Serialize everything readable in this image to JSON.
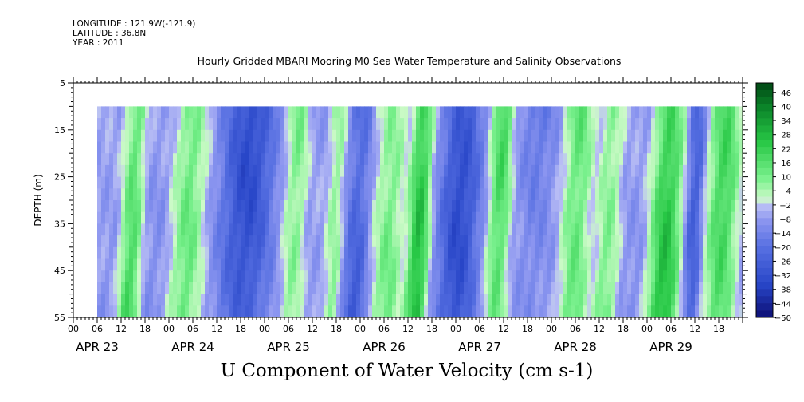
{
  "meta": {
    "longitude": "LONGITUDE : 121.9W(-121.9)",
    "latitude": "LATITUDE : 36.8N",
    "year": "YEAR : 2011"
  },
  "title": "Hourly Gridded MBARI Mooring M0 Sea Water Temperature and Salinity Observations",
  "variable_title": "U Component of Water Velocity (cm s-1)",
  "chart_data": {
    "type": "heatmap",
    "ylabel": "DEPTH (m)",
    "xlabel": "",
    "ylim": [
      5,
      55
    ],
    "y_inverted": true,
    "y_ticks": [
      "5",
      "15",
      "25",
      "35",
      "45",
      "55"
    ],
    "xlim_hours": [
      0,
      168
    ],
    "x_hour_ticks": [
      "00",
      "06",
      "12",
      "18"
    ],
    "day_labels": [
      "APR 23",
      "APR 24",
      "APR 25",
      "APR 26",
      "APR 27",
      "APR 28",
      "APR 29"
    ],
    "data_start": "APR 23 06:00",
    "data_depth_range": [
      10,
      55
    ],
    "colorbar": {
      "labels": [
        "46",
        "40",
        "34",
        "28",
        "22",
        "16",
        "10",
        "4",
        "-2",
        "-8",
        "-14",
        "-20",
        "-26",
        "-32",
        "-38",
        "-44",
        "-50"
      ],
      "min": -50,
      "max": 50,
      "step": 3
    },
    "bands": [
      {
        "start": "APR 23 06",
        "end": "APR 23 12",
        "sign": "negative"
      },
      {
        "start": "APR 23 12",
        "end": "APR 23 18",
        "sign": "positive",
        "peak": 16
      },
      {
        "start": "APR 23 18",
        "end": "APR 24 00",
        "sign": "negative"
      },
      {
        "start": "APR 24 00",
        "end": "APR 24 10",
        "sign": "positive",
        "peak": 10
      },
      {
        "start": "APR 24 10",
        "end": "APR 25 05",
        "sign": "negative",
        "peak": -26
      },
      {
        "start": "APR 25 05",
        "end": "APR 25 11",
        "sign": "positive",
        "peak": 10
      },
      {
        "start": "APR 25 11",
        "end": "APR 25 16",
        "sign": "negative"
      },
      {
        "start": "APR 25 16",
        "end": "APR 25 20",
        "sign": "positive",
        "peak": 8
      },
      {
        "start": "APR 25 20",
        "end": "APR 26 03",
        "sign": "negative",
        "peak": -26
      },
      {
        "start": "APR 26 03",
        "end": "APR 26 12",
        "sign": "positive",
        "peak": 10
      },
      {
        "start": "APR 26 12",
        "end": "APR 26 18",
        "sign": "positive",
        "peak": 22
      },
      {
        "start": "APR 26 18",
        "end": "APR 27 08",
        "sign": "negative",
        "peak": -26
      },
      {
        "start": "APR 27 08",
        "end": "APR 27 14",
        "sign": "positive",
        "peak": 16
      },
      {
        "start": "APR 27 14",
        "end": "APR 28 02",
        "sign": "negative",
        "peak": -14
      },
      {
        "start": "APR 28 02",
        "end": "APR 28 11",
        "sign": "positive",
        "peak": 16
      },
      {
        "start": "APR 28 11",
        "end": "APR 28 18",
        "sign": "positive",
        "peak": 10
      },
      {
        "start": "APR 28 18",
        "end": "APR 29 00",
        "sign": "negative"
      },
      {
        "start": "APR 29 00",
        "end": "APR 29 10",
        "sign": "positive",
        "peak": 22
      },
      {
        "start": "APR 29 10",
        "end": "APR 29 14",
        "sign": "negative",
        "peak": -20
      },
      {
        "start": "APR 29 14",
        "end": "APR 29 24",
        "sign": "positive",
        "peak": 16
      }
    ]
  }
}
